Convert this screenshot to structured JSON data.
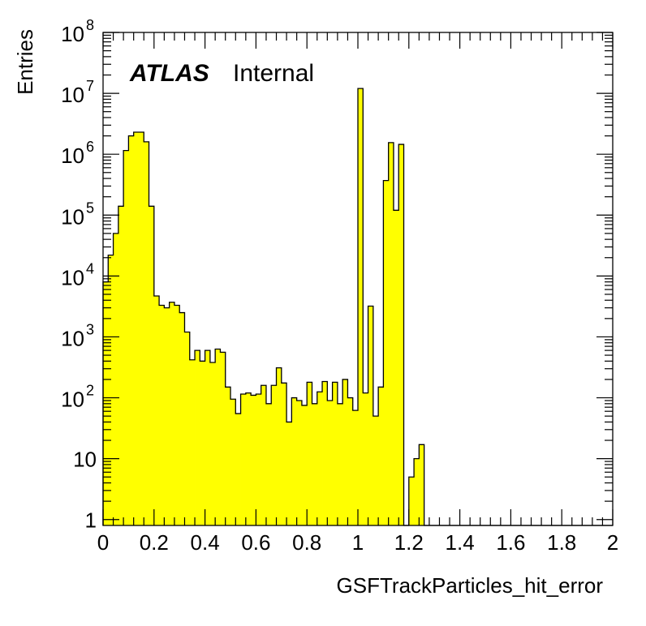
{
  "chart_data": {
    "type": "bar",
    "title": "",
    "xlabel": "GSFTrackParticles_hit_error",
    "ylabel": "Entries",
    "xlim": [
      0,
      2
    ],
    "ylim": [
      0.8,
      100000000
    ],
    "yscale": "log",
    "bin_width": 0.02,
    "fill_color": "#ffff00",
    "line_color": "#000000",
    "label": {
      "experiment": "ATLAS",
      "status": "Internal"
    },
    "x_tick_labels": [
      "0",
      "0.2",
      "0.4",
      "0.6",
      "0.8",
      "1",
      "1.2",
      "1.4",
      "1.6",
      "1.8",
      "2"
    ],
    "y_ticks": [
      {
        "value": 1,
        "base": "1",
        "exp": ""
      },
      {
        "value": 10,
        "base": "10",
        "exp": ""
      },
      {
        "value": 100,
        "base": "10",
        "exp": "2"
      },
      {
        "value": 1000,
        "base": "10",
        "exp": "3"
      },
      {
        "value": 10000,
        "base": "10",
        "exp": "4"
      },
      {
        "value": 100000,
        "base": "10",
        "exp": "5"
      },
      {
        "value": 1000000,
        "base": "10",
        "exp": "6"
      },
      {
        "value": 10000000,
        "base": "10",
        "exp": "7"
      },
      {
        "value": 100000000,
        "base": "10",
        "exp": "8"
      }
    ],
    "values": [
      8000,
      22000,
      50000,
      140000,
      1150000,
      2000000,
      2300000,
      2300000,
      1600000,
      140000,
      4700,
      3300,
      3000,
      3700,
      3300,
      2500,
      1200,
      420,
      600,
      400,
      600,
      380,
      630,
      560,
      150,
      95,
      55,
      115,
      120,
      110,
      115,
      160,
      80,
      160,
      310,
      175,
      40,
      100,
      90,
      75,
      180,
      80,
      125,
      185,
      90,
      180,
      80,
      200,
      100,
      62,
      12000000,
      120,
      3200,
      50,
      150,
      370000,
      1550000,
      120000,
      1450000,
      0,
      5,
      10,
      17,
      0,
      0,
      0,
      0,
      0,
      0,
      0,
      0,
      0,
      0,
      0,
      0,
      0,
      0,
      0,
      0,
      0,
      0,
      0,
      0,
      0,
      0,
      0,
      0,
      0,
      0,
      0,
      0,
      0,
      0,
      0,
      0,
      0,
      0,
      0,
      0,
      0
    ]
  }
}
